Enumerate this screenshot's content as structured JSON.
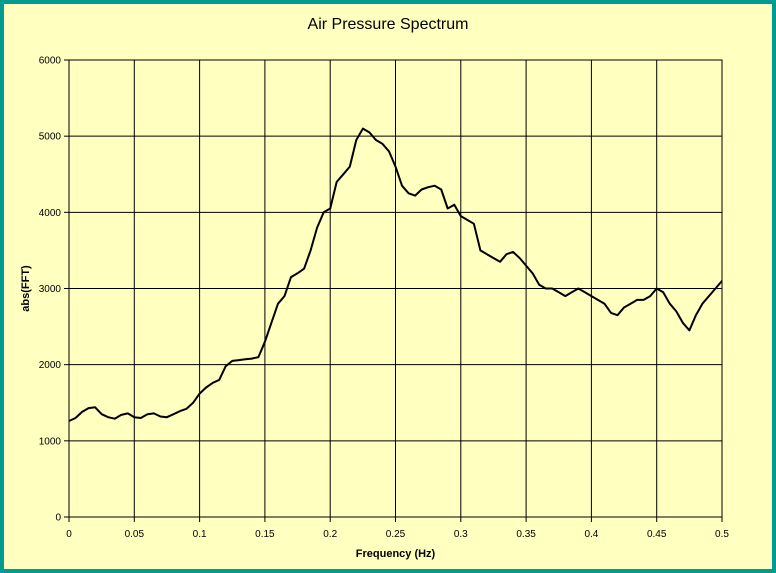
{
  "chart_data": {
    "type": "line",
    "title": "Air Pressure Spectrum",
    "xlabel": "Frequency (Hz)",
    "ylabel": "abs(FFT)",
    "xlim": [
      0,
      0.5
    ],
    "ylim": [
      0,
      6000
    ],
    "x_ticks": [
      "0",
      "0.05",
      "0.1",
      "0.15",
      "0.2",
      "0.25",
      "0.3",
      "0.35",
      "0.4",
      "0.45",
      "0.5"
    ],
    "y_ticks": [
      "0",
      "1000",
      "2000",
      "3000",
      "4000",
      "5000",
      "6000"
    ],
    "grid": true,
    "legend": "none",
    "colors": {
      "background": "#ffffc0",
      "border": "#009c94",
      "line": "#000000",
      "grid": "#000000"
    },
    "series": [
      {
        "x": [
          0,
          0.005,
          0.01,
          0.015,
          0.02,
          0.025,
          0.03,
          0.035,
          0.04,
          0.045,
          0.05,
          0.055,
          0.06,
          0.065,
          0.07,
          0.075,
          0.08,
          0.085,
          0.09,
          0.095,
          0.1,
          0.105,
          0.11,
          0.115,
          0.12,
          0.125,
          0.13,
          0.135,
          0.14,
          0.145,
          0.15,
          0.155,
          0.16,
          0.165,
          0.17,
          0.175,
          0.18,
          0.185,
          0.19,
          0.195,
          0.2,
          0.205,
          0.21,
          0.215,
          0.22,
          0.225,
          0.23,
          0.235,
          0.24,
          0.245,
          0.25,
          0.255,
          0.26,
          0.265,
          0.27,
          0.275,
          0.28,
          0.285,
          0.29,
          0.295,
          0.3,
          0.305,
          0.31,
          0.315,
          0.32,
          0.325,
          0.33,
          0.335,
          0.34,
          0.345,
          0.35,
          0.355,
          0.36,
          0.365,
          0.37,
          0.375,
          0.38,
          0.385,
          0.39,
          0.395,
          0.4,
          0.405,
          0.41,
          0.415,
          0.42,
          0.425,
          0.43,
          0.435,
          0.44,
          0.445,
          0.45,
          0.455,
          0.46,
          0.465,
          0.47,
          0.475,
          0.48,
          0.485,
          0.49,
          0.495,
          0.5
        ],
        "values": [
          1260,
          1300,
          1380,
          1430,
          1440,
          1350,
          1310,
          1290,
          1340,
          1360,
          1310,
          1300,
          1350,
          1360,
          1320,
          1310,
          1350,
          1390,
          1420,
          1500,
          1620,
          1700,
          1760,
          1800,
          1980,
          2050,
          2060,
          2070,
          2080,
          2100,
          2300,
          2550,
          2800,
          2900,
          3150,
          3200,
          3260,
          3500,
          3800,
          4000,
          4050,
          4400,
          4500,
          4600,
          4950,
          5100,
          5050,
          4950,
          4900,
          4800,
          4600,
          4350,
          4250,
          4220,
          4300,
          4330,
          4350,
          4300,
          4050,
          4100,
          3950,
          3900,
          3850,
          3500,
          3450,
          3400,
          3350,
          3450,
          3480,
          3400,
          3300,
          3200,
          3050,
          3000,
          3000,
          2950,
          2900,
          2950,
          3000,
          2950,
          2900,
          2850,
          2800,
          2680,
          2650,
          2750,
          2800,
          2850,
          2850,
          2900,
          3000,
          2950,
          2800,
          2700,
          2550,
          2450,
          2650,
          2800,
          2900,
          3000,
          3100
        ]
      }
    ]
  }
}
